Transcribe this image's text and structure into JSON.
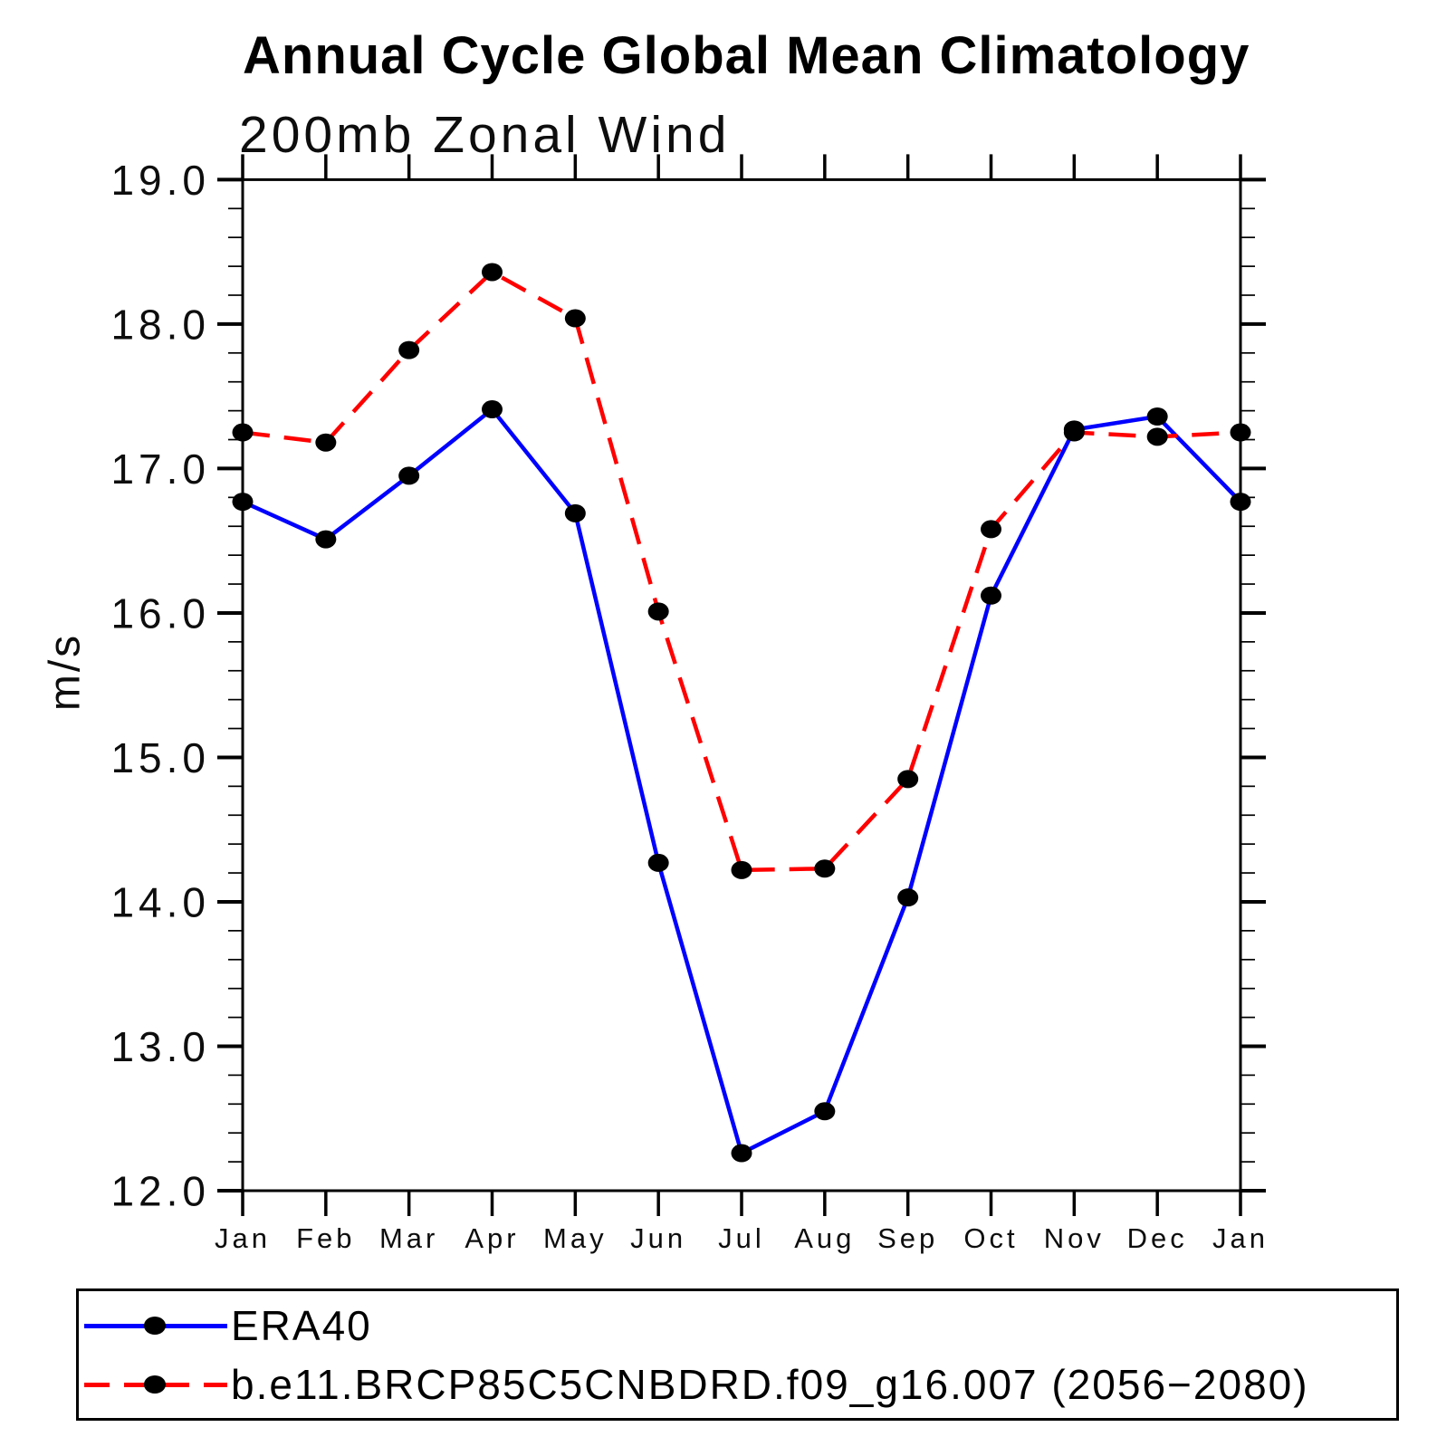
{
  "chart_data": {
    "type": "line",
    "title": "Annual Cycle Global Mean Climatology",
    "subtitle": "200mb Zonal Wind",
    "ylabel": "m/s",
    "categories": [
      "Jan",
      "Feb",
      "Mar",
      "Apr",
      "May",
      "Jun",
      "Jul",
      "Aug",
      "Sep",
      "Oct",
      "Nov",
      "Dec",
      "Jan"
    ],
    "ylim": [
      12.0,
      19.0
    ],
    "yticks": [
      "12.0",
      "13.0",
      "14.0",
      "15.0",
      "16.0",
      "17.0",
      "18.0",
      "19.0"
    ],
    "y_minor_step": 0.2,
    "grid": false,
    "legend_position": "bottom-left-box",
    "axis_color": "#000000",
    "marker_color": "#000000",
    "series": [
      {
        "name": "ERA40",
        "color": "#0000ff",
        "style": "solid",
        "marker": "filled-circle",
        "values": [
          16.77,
          16.51,
          16.95,
          17.41,
          16.69,
          14.27,
          12.26,
          12.55,
          14.03,
          16.12,
          17.27,
          17.36,
          16.77
        ]
      },
      {
        "name": "b.e11.BRCP85C5CNBDRD.f09_g16.007 (2056−2080)",
        "color": "#ff0000",
        "style": "dashed",
        "marker": "filled-circle",
        "values": [
          17.25,
          17.18,
          17.82,
          18.36,
          18.04,
          16.01,
          14.22,
          14.23,
          14.85,
          16.58,
          17.25,
          17.22,
          17.25
        ]
      }
    ]
  }
}
